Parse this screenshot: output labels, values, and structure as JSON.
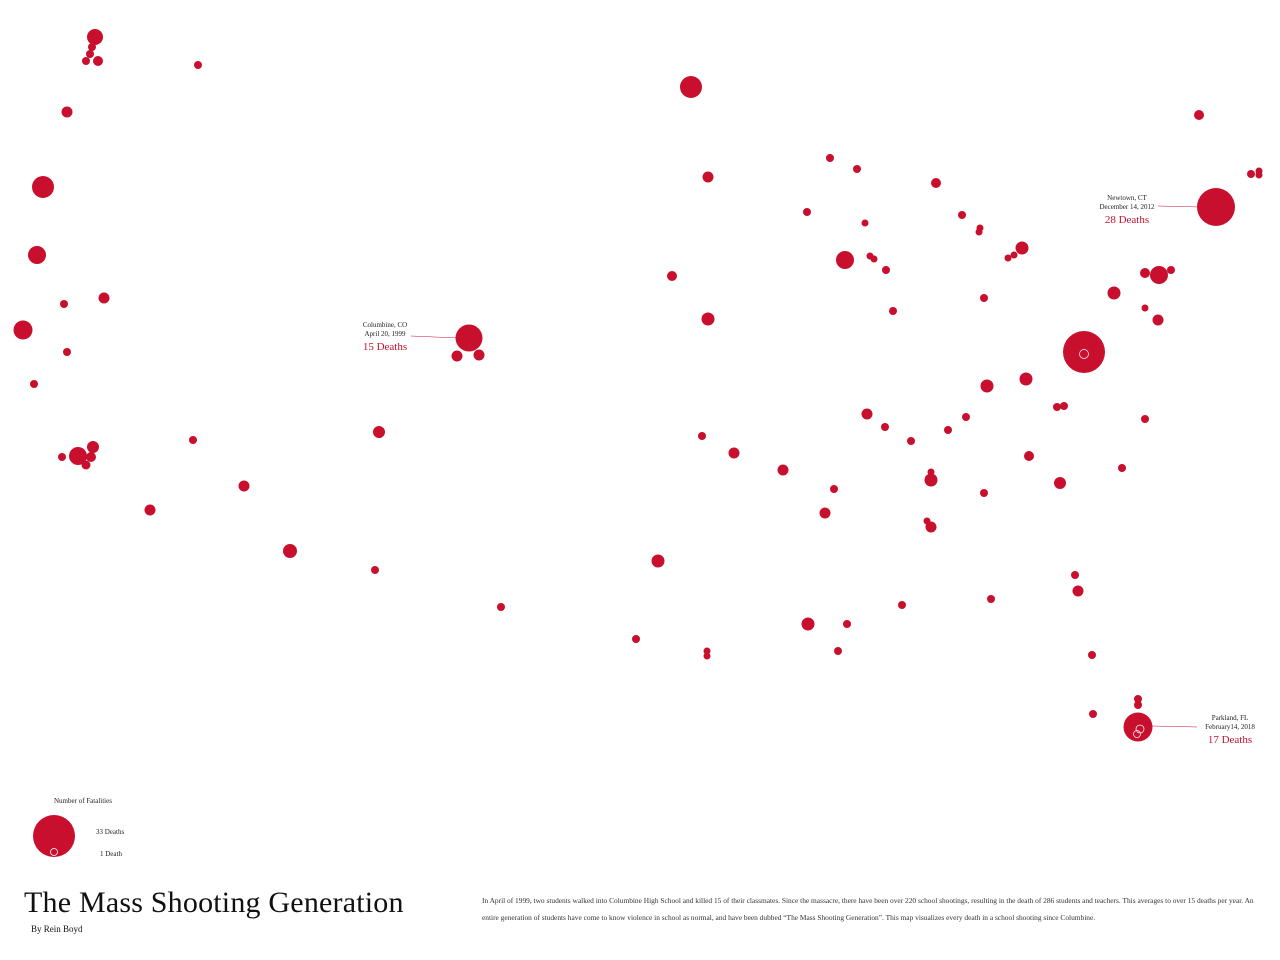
{
  "colors": {
    "incident": "#c8102e",
    "text": "#222222",
    "background": "#ffffff"
  },
  "title": "The Mass Shooting Generation",
  "byline": "By Rein Boyd",
  "description": "In April of 1999, two students walked into Columbine High School and killed 15 of their classmates. Since the massacre, there have been over 220 school shootings, resulting in the death of 286 students and teachers. This averages to over 15 deaths per year. An entire generation of students have come to know violence in school as normal, and have been dubbed “The Mass Shooting Generation”. This map visualizes every death in a school shooting since Columbine.",
  "legend": {
    "title": "Number of Fatalities",
    "max_label": "33 Deaths",
    "min_label": "1 Death",
    "max_value": 33,
    "min_value": 1
  },
  "callouts": {
    "columbine": {
      "place": "Columbine, CO",
      "date": "April 20, 1999",
      "deaths": "15 Deaths",
      "fatalities": 15
    },
    "newtown": {
      "place": "Newtown, CT",
      "date": "December 14, 2012",
      "deaths": "28 Deaths",
      "fatalities": 28
    },
    "parkland": {
      "place": "Parkland, FL",
      "date": "February14, 2018",
      "deaths": "17 Deaths",
      "fatalities": 17
    }
  }
}
